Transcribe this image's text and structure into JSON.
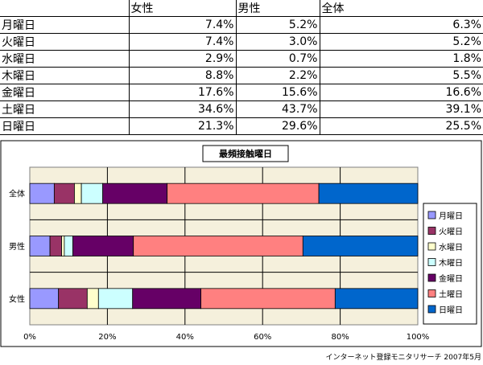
{
  "table": {
    "headers": [
      "",
      "女性",
      "男性",
      "全体"
    ],
    "rows": [
      {
        "day": "月曜日",
        "female": "7.4%",
        "male": "5.2%",
        "total": "6.3%"
      },
      {
        "day": "火曜日",
        "female": "7.4%",
        "male": "3.0%",
        "total": "5.2%"
      },
      {
        "day": "水曜日",
        "female": "2.9%",
        "male": "0.7%",
        "total": "1.8%"
      },
      {
        "day": "木曜日",
        "female": "8.8%",
        "male": "2.2%",
        "total": "5.5%"
      },
      {
        "day": "金曜日",
        "female": "17.6%",
        "male": "15.6%",
        "total": "16.6%"
      },
      {
        "day": "土曜日",
        "female": "34.6%",
        "male": "43.7%",
        "total": "39.1%"
      },
      {
        "day": "日曜日",
        "female": "21.3%",
        "male": "29.6%",
        "total": "25.5%"
      }
    ]
  },
  "chart_data": {
    "type": "bar",
    "orientation": "horizontal",
    "stacked": "percent",
    "title": "最頻接触曜日",
    "categories": [
      "全体",
      "男性",
      "女性"
    ],
    "series": [
      {
        "name": "月曜日",
        "color": "#9999ff",
        "values": [
          6.3,
          5.2,
          7.4
        ]
      },
      {
        "name": "火曜日",
        "color": "#993366",
        "values": [
          5.2,
          3.0,
          7.4
        ]
      },
      {
        "name": "水曜日",
        "color": "#ffffcc",
        "values": [
          1.8,
          0.7,
          2.9
        ]
      },
      {
        "name": "木曜日",
        "color": "#ccffff",
        "values": [
          5.5,
          2.2,
          8.8
        ]
      },
      {
        "name": "金曜日",
        "color": "#660066",
        "values": [
          16.6,
          15.6,
          17.6
        ]
      },
      {
        "name": "土曜日",
        "color": "#ff8080",
        "values": [
          39.1,
          43.7,
          34.6
        ]
      },
      {
        "name": "日曜日",
        "color": "#0066cc",
        "values": [
          25.5,
          29.6,
          21.3
        ]
      }
    ],
    "x_ticks": [
      "0%",
      "20%",
      "40%",
      "60%",
      "80%",
      "100%"
    ],
    "xlim": [
      0,
      100
    ],
    "grid": true,
    "legend": "right",
    "plot_background": "#f5f0dc"
  },
  "footer": {
    "source": "インターネット登録モニタリサーチ 2007年5月"
  }
}
